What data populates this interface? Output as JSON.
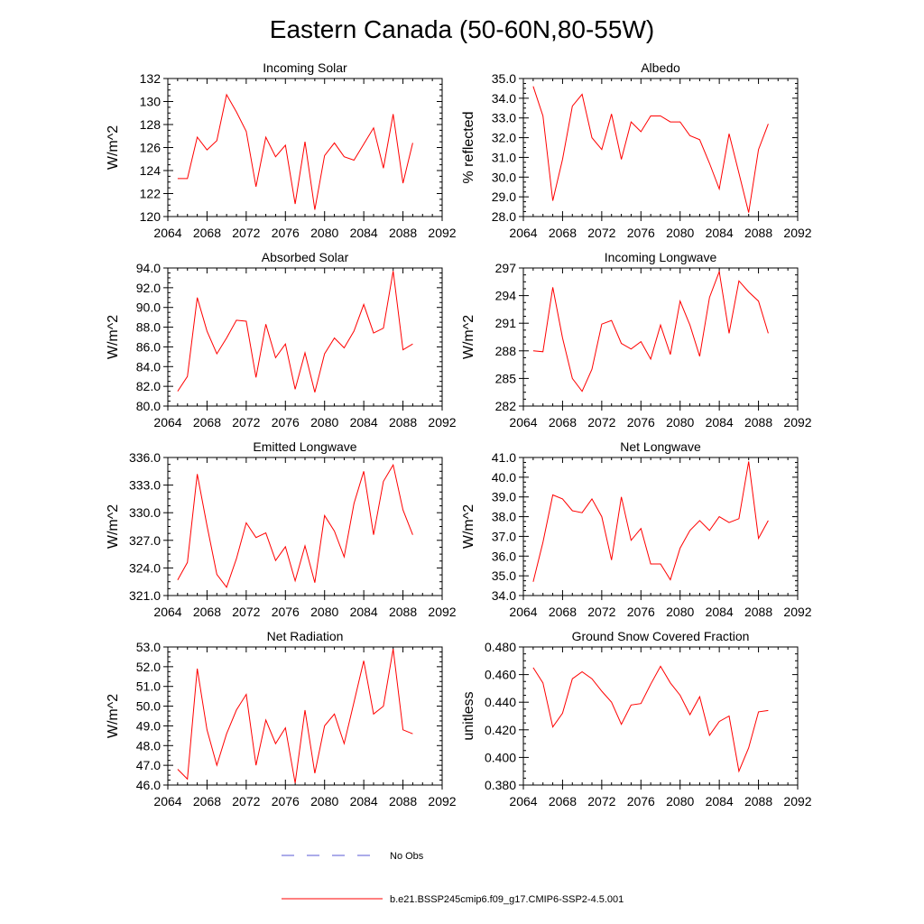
{
  "title": "Eastern Canada (50-60N,80-55W)",
  "colors": {
    "model": "#ff0000",
    "obs": "#5a5ad6",
    "axis": "#000000"
  },
  "chart_data": [
    {
      "type": "line",
      "title": "Incoming Solar",
      "xlabel": "",
      "ylabel": "W/m^2",
      "xlim": [
        2064,
        2092
      ],
      "xticks": [
        2064,
        2068,
        2072,
        2076,
        2080,
        2084,
        2088,
        2092
      ],
      "ylim": [
        120,
        132
      ],
      "yticks": [
        "120",
        "122",
        "124",
        "126",
        "128",
        "130",
        "132"
      ],
      "series": [
        {
          "name": "b.e21.BSSP245cmip6.f09_g17.CMIP6-SSP2-4.5.001",
          "x": [
            2065,
            2066,
            2067,
            2068,
            2069,
            2070,
            2071,
            2072,
            2073,
            2074,
            2075,
            2076,
            2077,
            2078,
            2079,
            2080,
            2081,
            2082,
            2083,
            2084,
            2085,
            2086,
            2087,
            2088,
            2089
          ],
          "y": [
            123.3,
            123.3,
            126.9,
            125.8,
            126.6,
            130.6,
            129.1,
            127.4,
            122.6,
            126.9,
            125.2,
            126.2,
            121.1,
            126.5,
            120.6,
            125.3,
            126.4,
            125.2,
            124.9,
            126.3,
            127.7,
            124.2,
            128.9,
            122.9,
            126.4
          ]
        }
      ]
    },
    {
      "type": "line",
      "title": "Albedo",
      "xlabel": "",
      "ylabel": "% reflected",
      "xlim": [
        2064,
        2092
      ],
      "xticks": [
        2064,
        2068,
        2072,
        2076,
        2080,
        2084,
        2088,
        2092
      ],
      "ylim": [
        28,
        35
      ],
      "yticks": [
        "28.0",
        "29.0",
        "30.0",
        "31.0",
        "32.0",
        "33.0",
        "34.0",
        "35.0"
      ],
      "series": [
        {
          "name": "b.e21.BSSP245cmip6.f09_g17.CMIP6-SSP2-4.5.001",
          "x": [
            2065,
            2066,
            2067,
            2068,
            2069,
            2070,
            2071,
            2072,
            2073,
            2074,
            2075,
            2076,
            2077,
            2078,
            2079,
            2080,
            2081,
            2082,
            2083,
            2084,
            2085,
            2086,
            2087,
            2088,
            2089
          ],
          "y": [
            34.6,
            33.1,
            28.8,
            30.9,
            33.6,
            34.2,
            32.0,
            31.4,
            33.2,
            30.9,
            32.8,
            32.3,
            33.1,
            33.1,
            32.8,
            32.8,
            32.1,
            31.9,
            30.7,
            29.4,
            32.2,
            30.2,
            28.2,
            31.4,
            32.7
          ]
        }
      ]
    },
    {
      "type": "line",
      "title": "Absorbed Solar",
      "xlabel": "",
      "ylabel": "W/m^2",
      "xlim": [
        2064,
        2092
      ],
      "xticks": [
        2064,
        2068,
        2072,
        2076,
        2080,
        2084,
        2088,
        2092
      ],
      "ylim": [
        80,
        94
      ],
      "yticks": [
        "80.0",
        "82.0",
        "84.0",
        "86.0",
        "88.0",
        "90.0",
        "92.0",
        "94.0"
      ],
      "series": [
        {
          "name": "b.e21.BSSP245cmip6.f09_g17.CMIP6-SSP2-4.5.001",
          "x": [
            2065,
            2066,
            2067,
            2068,
            2069,
            2070,
            2071,
            2072,
            2073,
            2074,
            2075,
            2076,
            2077,
            2078,
            2079,
            2080,
            2081,
            2082,
            2083,
            2084,
            2085,
            2086,
            2087,
            2088,
            2089
          ],
          "y": [
            81.5,
            83.0,
            91.0,
            87.6,
            85.3,
            86.9,
            88.7,
            88.6,
            82.9,
            88.3,
            84.9,
            86.3,
            81.7,
            85.4,
            81.4,
            85.3,
            86.9,
            85.9,
            87.6,
            90.3,
            87.4,
            87.9,
            93.7,
            85.7,
            86.3
          ]
        }
      ]
    },
    {
      "type": "line",
      "title": "Incoming Longwave",
      "xlabel": "",
      "ylabel": "W/m^2",
      "xlim": [
        2064,
        2092
      ],
      "xticks": [
        2064,
        2068,
        2072,
        2076,
        2080,
        2084,
        2088,
        2092
      ],
      "ylim": [
        282,
        297
      ],
      "yticks": [
        "282",
        "285",
        "288",
        "291",
        "294",
        "297"
      ],
      "series": [
        {
          "name": "b.e21.BSSP245cmip6.f09_g17.CMIP6-SSP2-4.5.001",
          "x": [
            2065,
            2066,
            2067,
            2068,
            2069,
            2070,
            2071,
            2072,
            2073,
            2074,
            2075,
            2076,
            2077,
            2078,
            2079,
            2080,
            2081,
            2082,
            2083,
            2084,
            2085,
            2086,
            2087,
            2088,
            2089
          ],
          "y": [
            288.0,
            287.9,
            294.9,
            289.4,
            285.0,
            283.6,
            286.0,
            290.9,
            291.3,
            288.8,
            288.2,
            289.0,
            287.1,
            290.8,
            287.6,
            293.4,
            290.8,
            287.4,
            293.8,
            296.6,
            289.9,
            295.6,
            294.4,
            293.4,
            289.9
          ]
        }
      ]
    },
    {
      "type": "line",
      "title": "Emitted Longwave",
      "xlabel": "",
      "ylabel": "W/m^2",
      "xlim": [
        2064,
        2092
      ],
      "xticks": [
        2064,
        2068,
        2072,
        2076,
        2080,
        2084,
        2088,
        2092
      ],
      "ylim": [
        321,
        336
      ],
      "yticks": [
        "321.0",
        "324.0",
        "327.0",
        "330.0",
        "333.0",
        "336.0"
      ],
      "series": [
        {
          "name": "b.e21.BSSP245cmip6.f09_g17.CMIP6-SSP2-4.5.001",
          "x": [
            2065,
            2066,
            2067,
            2068,
            2069,
            2070,
            2071,
            2072,
            2073,
            2074,
            2075,
            2076,
            2077,
            2078,
            2079,
            2080,
            2081,
            2082,
            2083,
            2084,
            2085,
            2086,
            2087,
            2088,
            2089
          ],
          "y": [
            322.7,
            324.6,
            334.2,
            328.6,
            323.3,
            321.9,
            325.0,
            328.9,
            327.3,
            327.8,
            324.8,
            326.3,
            322.6,
            326.4,
            322.4,
            329.7,
            328.0,
            325.2,
            331.0,
            334.5,
            327.6,
            333.4,
            335.2,
            330.3,
            327.6
          ]
        }
      ]
    },
    {
      "type": "line",
      "title": "Net Longwave",
      "xlabel": "",
      "ylabel": "W/m^2",
      "xlim": [
        2064,
        2092
      ],
      "xticks": [
        2064,
        2068,
        2072,
        2076,
        2080,
        2084,
        2088,
        2092
      ],
      "ylim": [
        34,
        41
      ],
      "yticks": [
        "34.0",
        "35.0",
        "36.0",
        "37.0",
        "38.0",
        "39.0",
        "40.0",
        "41.0"
      ],
      "series": [
        {
          "name": "b.e21.BSSP245cmip6.f09_g17.CMIP6-SSP2-4.5.001",
          "x": [
            2065,
            2066,
            2067,
            2068,
            2069,
            2070,
            2071,
            2072,
            2073,
            2074,
            2075,
            2076,
            2077,
            2078,
            2079,
            2080,
            2081,
            2082,
            2083,
            2084,
            2085,
            2086,
            2087,
            2088,
            2089
          ],
          "y": [
            34.7,
            36.7,
            39.1,
            38.9,
            38.3,
            38.2,
            38.9,
            38.0,
            35.8,
            39.0,
            36.8,
            37.4,
            35.6,
            35.6,
            34.8,
            36.4,
            37.3,
            37.8,
            37.3,
            38.0,
            37.7,
            37.9,
            40.8,
            36.9,
            37.8
          ]
        }
      ]
    },
    {
      "type": "line",
      "title": "Net Radiation",
      "xlabel": "",
      "ylabel": "W/m^2",
      "xlim": [
        2064,
        2092
      ],
      "xticks": [
        2064,
        2068,
        2072,
        2076,
        2080,
        2084,
        2088,
        2092
      ],
      "ylim": [
        46,
        53
      ],
      "yticks": [
        "46.0",
        "47.0",
        "48.0",
        "49.0",
        "50.0",
        "51.0",
        "52.0",
        "53.0"
      ],
      "series": [
        {
          "name": "b.e21.BSSP245cmip6.f09_g17.CMIP6-SSP2-4.5.001",
          "x": [
            2065,
            2066,
            2067,
            2068,
            2069,
            2070,
            2071,
            2072,
            2073,
            2074,
            2075,
            2076,
            2077,
            2078,
            2079,
            2080,
            2081,
            2082,
            2083,
            2084,
            2085,
            2086,
            2087,
            2088,
            2089
          ],
          "y": [
            46.8,
            46.3,
            51.9,
            48.8,
            47.0,
            48.6,
            49.8,
            50.6,
            47.0,
            49.3,
            48.1,
            48.9,
            46.1,
            49.8,
            46.6,
            49.0,
            49.6,
            48.1,
            50.2,
            52.3,
            49.6,
            50.0,
            52.9,
            48.8,
            48.6
          ]
        }
      ]
    },
    {
      "type": "line",
      "title": "Ground Snow Covered Fraction",
      "xlabel": "",
      "ylabel": "unitless",
      "xlim": [
        2064,
        2092
      ],
      "xticks": [
        2064,
        2068,
        2072,
        2076,
        2080,
        2084,
        2088,
        2092
      ],
      "ylim": [
        0.38,
        0.48
      ],
      "yticks": [
        "0.380",
        "0.400",
        "0.420",
        "0.440",
        "0.460",
        "0.480"
      ],
      "series": [
        {
          "name": "b.e21.BSSP245cmip6.f09_g17.CMIP6-SSP2-4.5.001",
          "x": [
            2065,
            2066,
            2067,
            2068,
            2069,
            2070,
            2071,
            2072,
            2073,
            2074,
            2075,
            2076,
            2077,
            2078,
            2079,
            2080,
            2081,
            2082,
            2083,
            2084,
            2085,
            2086,
            2087,
            2088,
            2089
          ],
          "y": [
            0.465,
            0.454,
            0.422,
            0.432,
            0.457,
            0.462,
            0.457,
            0.448,
            0.44,
            0.424,
            0.438,
            0.439,
            0.453,
            0.466,
            0.454,
            0.445,
            0.431,
            0.444,
            0.416,
            0.426,
            0.43,
            0.39,
            0.407,
            0.433,
            0.434
          ]
        }
      ]
    }
  ],
  "legend": {
    "entries": [
      {
        "label": "No Obs",
        "style": "dashed"
      },
      {
        "label": "b.e21.BSSP245cmip6.f09_g17.CMIP6-SSP2-4.5.001",
        "style": "solid"
      }
    ]
  }
}
